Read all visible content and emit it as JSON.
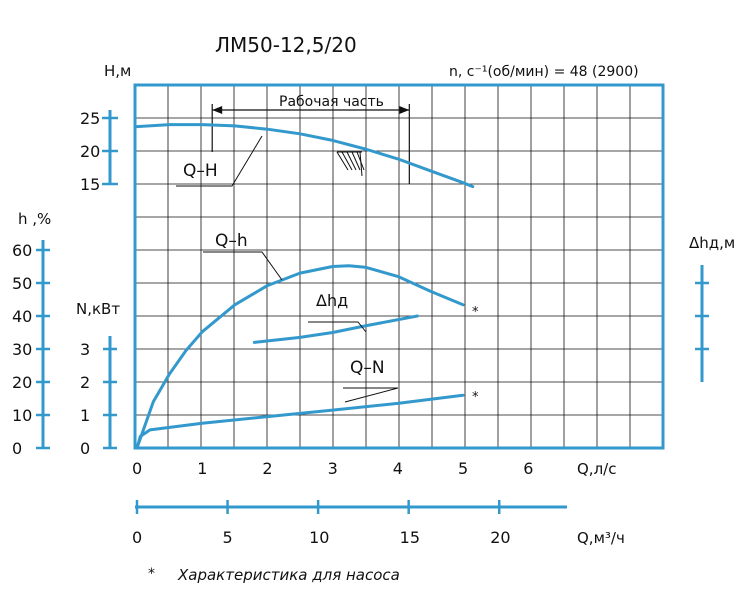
{
  "chart_data": {
    "type": "line",
    "title": "ЛМ50-12,5/20",
    "speed_label": "n, с⁻¹(об/мин) = 48 (2900)",
    "working_zone_label": "Рабочая часть",
    "working_zone": [
      1.0,
      4.1
    ],
    "x_axis_primary": {
      "label": "Q,л/с",
      "ticks": [
        "0",
        "1",
        "2",
        "3",
        "4",
        "5",
        "6"
      ],
      "range": [
        0,
        8
      ]
    },
    "x_axis_secondary": {
      "label": "Q,м³/ч",
      "ticks": [
        "0",
        "5",
        "10",
        "15",
        "20"
      ],
      "range": [
        0,
        25
      ]
    },
    "axes": {
      "H": {
        "label": "H,м",
        "ticks": [
          "25",
          "20",
          "15"
        ]
      },
      "h": {
        "label": "h ,%",
        "ticks": [
          "60",
          "50",
          "40",
          "30",
          "20",
          "10",
          "0"
        ]
      },
      "N": {
        "label": "N,кВт",
        "ticks": [
          "3",
          "2",
          "1",
          "0"
        ]
      },
      "NPSH": {
        "label": "Δhд,м"
      }
    },
    "series": [
      {
        "name": "Q–H",
        "points": [
          [
            0,
            23.7
          ],
          [
            0.5,
            24.0
          ],
          [
            1.0,
            24.0
          ],
          [
            1.5,
            23.8
          ],
          [
            2.0,
            23.3
          ],
          [
            2.5,
            22.6
          ],
          [
            3.0,
            21.6
          ],
          [
            3.5,
            20.3
          ],
          [
            4.0,
            18.8
          ],
          [
            4.5,
            17.0
          ],
          [
            5.0,
            15.2
          ],
          [
            5.15,
            14.6
          ]
        ]
      },
      {
        "name": "Q–h",
        "points": [
          [
            0,
            0
          ],
          [
            0.25,
            14
          ],
          [
            0.5,
            22.5
          ],
          [
            0.75,
            29.5
          ],
          [
            1.0,
            35.2
          ],
          [
            1.5,
            43.4
          ],
          [
            2.0,
            49.2
          ],
          [
            2.5,
            53.0
          ],
          [
            3.0,
            55.0
          ],
          [
            3.25,
            55.2
          ],
          [
            3.5,
            54.8
          ],
          [
            4.0,
            52.0
          ],
          [
            4.5,
            47.5
          ],
          [
            5.0,
            43.4
          ]
        ]
      },
      {
        "name": "Δhд",
        "points": [
          [
            1.8,
            3.2
          ],
          [
            2.5,
            3.35
          ],
          [
            3.0,
            3.5
          ],
          [
            3.5,
            3.7
          ],
          [
            4.3,
            4.0
          ]
        ]
      },
      {
        "name": "Q–N",
        "points": [
          [
            0,
            0
          ],
          [
            0.05,
            0.35
          ],
          [
            0.2,
            0.55
          ],
          [
            1.0,
            0.75
          ],
          [
            2.0,
            0.95
          ],
          [
            3.0,
            1.15
          ],
          [
            4.0,
            1.35
          ],
          [
            5.0,
            1.6
          ]
        ]
      }
    ],
    "footnote": "Характеристика для насоса",
    "footnote_mark": "*",
    "grid": true,
    "colors": {
      "axis": "#3399cc",
      "curve": "#3399cc",
      "grid": "#111111",
      "text": "#111111"
    }
  }
}
